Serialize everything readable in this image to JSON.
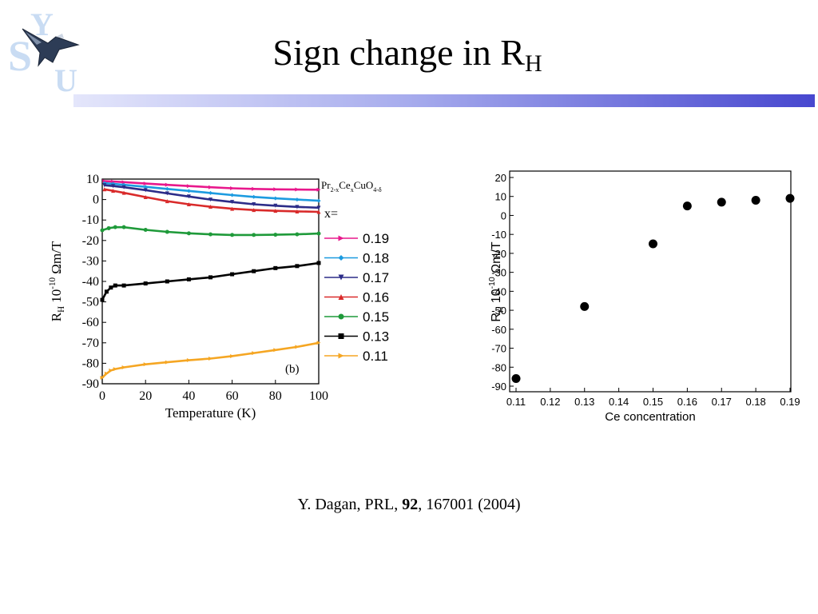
{
  "slide": {
    "title_main": "Sign change in R",
    "title_sub": "H",
    "citation": {
      "authors": "Y. Dagan,  PRL, ",
      "volume": "92",
      "rest": ", 167001 (2004)"
    },
    "logo_letters": [
      "Y",
      "S",
      "U"
    ]
  },
  "colors": {
    "title_bar_start": "#e4e6fb",
    "title_bar_end": "#4747cf",
    "logo": "#c9dcf3"
  },
  "chart_data": [
    {
      "type": "line",
      "panel_label": "(b)",
      "xlabel": "Temperature (K)",
      "ylabel_parts": {
        "main": "R",
        "sub": "H",
        "mid": " 10",
        "sup": "-10",
        "unit": " Ωm/T"
      },
      "xlim": [
        0,
        100
      ],
      "ylim": [
        -90,
        10
      ],
      "xticks": [
        0,
        20,
        40,
        60,
        80,
        100
      ],
      "yticks": [
        10,
        0,
        -10,
        -20,
        -30,
        -40,
        -50,
        -60,
        -70,
        -80,
        -90
      ],
      "legend_title": {
        "pr": "Pr",
        "pr_sub": "2-x",
        "ce": "Ce",
        "ce_sub": "x",
        "cuo": "CuO",
        "cuo_sub": "4-δ"
      },
      "legend_label": "x=",
      "series": [
        {
          "name": "0.19",
          "color": "#e8188c",
          "marker": "triangle-right",
          "x": [
            1,
            5,
            10,
            20,
            30,
            40,
            50,
            60,
            70,
            80,
            90,
            100
          ],
          "y": [
            9,
            8.8,
            8.5,
            7.8,
            7.2,
            6.6,
            6.0,
            5.5,
            5.2,
            5.0,
            4.9,
            4.8
          ]
        },
        {
          "name": "0.18",
          "color": "#1c9be0",
          "marker": "diamond",
          "x": [
            1,
            5,
            10,
            20,
            30,
            40,
            50,
            60,
            70,
            80,
            90,
            100
          ],
          "y": [
            8,
            7.7,
            7.2,
            6.2,
            5.2,
            4.2,
            3.2,
            2.2,
            1.3,
            0.6,
            0,
            -0.6
          ]
        },
        {
          "name": "0.17",
          "color": "#2c2c88",
          "marker": "triangle-down",
          "x": [
            1,
            5,
            10,
            20,
            30,
            40,
            50,
            60,
            70,
            80,
            90,
            100
          ],
          "y": [
            7,
            6.6,
            6.0,
            4.6,
            3.0,
            1.5,
            0,
            -1.2,
            -2.3,
            -3.0,
            -3.6,
            -4.0
          ]
        },
        {
          "name": "0.16",
          "color": "#d92a2a",
          "marker": "triangle-up",
          "x": [
            1,
            5,
            10,
            20,
            30,
            40,
            50,
            60,
            70,
            80,
            90,
            100
          ],
          "y": [
            5,
            4.3,
            3.3,
            1.2,
            -0.8,
            -2.3,
            -3.5,
            -4.5,
            -5.1,
            -5.5,
            -5.8,
            -6.0
          ]
        },
        {
          "name": "0.15",
          "color": "#1f9a3a",
          "marker": "circle",
          "x": [
            0,
            3,
            6,
            10,
            20,
            30,
            40,
            50,
            60,
            70,
            80,
            90,
            100
          ],
          "y": [
            -15,
            -14,
            -13.5,
            -13.5,
            -14.8,
            -15.8,
            -16.5,
            -17,
            -17.3,
            -17.3,
            -17.2,
            -17.0,
            -16.6
          ]
        },
        {
          "name": "0.13",
          "color": "#000000",
          "marker": "square",
          "x": [
            0,
            2,
            4,
            6,
            10,
            20,
            30,
            40,
            50,
            60,
            70,
            80,
            90,
            100
          ],
          "y": [
            -49,
            -45,
            -43,
            -42,
            -42,
            -41,
            -40,
            -39,
            -38,
            -36.5,
            -35,
            -33.5,
            -32.5,
            -31
          ]
        },
        {
          "name": "0.11",
          "color": "#f5a623",
          "marker": "triangle-right",
          "x": [
            0,
            2,
            4,
            6,
            10,
            20,
            30,
            40,
            50,
            60,
            70,
            80,
            90,
            100
          ],
          "y": [
            -87,
            -85,
            -83.5,
            -82.8,
            -82,
            -80.5,
            -79.5,
            -78.5,
            -77.7,
            -76.5,
            -75,
            -73.5,
            -72,
            -70
          ]
        }
      ]
    },
    {
      "type": "scatter",
      "xlabel": "Ce concentration",
      "ylabel_parts": {
        "main": "R",
        "sub": "H",
        "mid": " 10",
        "sup": "-10",
        "unit": " Ωm/T"
      },
      "xlim": [
        0.11,
        0.19
      ],
      "ylim": [
        -90,
        20
      ],
      "xticks": [
        0.11,
        0.12,
        0.13,
        0.14,
        0.15,
        0.16,
        0.17,
        0.18,
        0.19
      ],
      "xtick_labels": [
        "0.11",
        "0.12",
        "0.13",
        "0.14",
        "0.15",
        "0.16",
        "0.17",
        "0.18",
        "0.19"
      ],
      "yticks": [
        20,
        10,
        0,
        -10,
        -20,
        -30,
        -40,
        -50,
        -60,
        -70,
        -80,
        -90
      ],
      "x": [
        0.11,
        0.13,
        0.15,
        0.16,
        0.17,
        0.18,
        0.19
      ],
      "y": [
        -86,
        -48,
        -15,
        5,
        7,
        8,
        9
      ],
      "marker_color": "#000000"
    }
  ]
}
